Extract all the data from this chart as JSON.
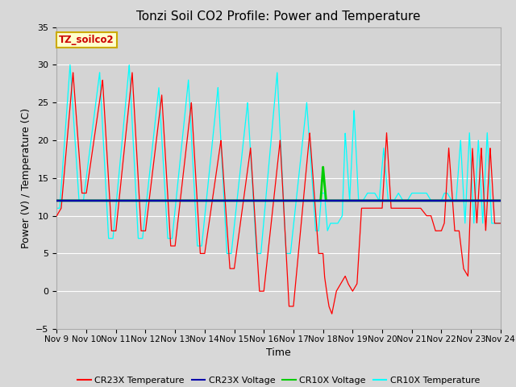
{
  "title": "Tonzi Soil CO2 Profile: Power and Temperature",
  "xlabel": "Time",
  "ylabel": "Power (V) / Temperature (C)",
  "ylim": [
    -5,
    35
  ],
  "yticks": [
    -5,
    0,
    5,
    10,
    15,
    20,
    25,
    30,
    35
  ],
  "xlim": [
    0,
    15
  ],
  "xtick_labels": [
    "Nov 9",
    "Nov 10",
    "Nov 11",
    "Nov 12",
    "Nov 13",
    "Nov 14",
    "Nov 15",
    "Nov 16",
    "Nov 17",
    "Nov 18",
    "Nov 19",
    "Nov 20",
    "Nov 21",
    "Nov 22",
    "Nov 23",
    "Nov 24"
  ],
  "cr23x_voltage_level": 12.0,
  "cr10x_voltage_level": 12.0,
  "fig_bg_color": "#d8d8d8",
  "plot_bg_color": "#d0d0d0",
  "grid_color": "#ffffff",
  "legend_label": "TZ_soilco2",
  "cr23x_color": "red",
  "cr10x_color": "cyan",
  "volt23x_color": "#0000aa",
  "volt10x_color": "#00cc00",
  "title_fontsize": 11,
  "label_fontsize": 9,
  "tick_fontsize": 8
}
